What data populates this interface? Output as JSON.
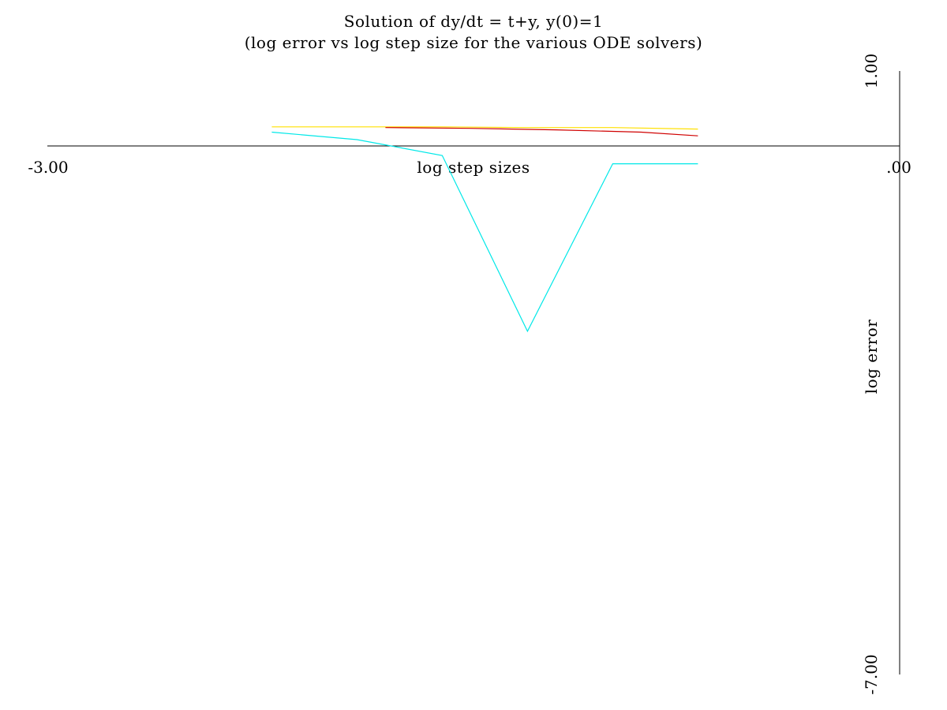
{
  "chart_data": {
    "type": "line",
    "title": "Solution of dy/dt = t+y, y(0)=1",
    "subtitle": "(log error vs log step size for the various ODE solvers)",
    "xlabel": "log step sizes",
    "ylabel": "log error",
    "xlim": [
      -3.0,
      0.0
    ],
    "ylim": [
      -7.0,
      1.0
    ],
    "x_tick_labels": [
      "-3.00",
      ".00"
    ],
    "y_tick_labels": [
      "1.00",
      "-7.00"
    ],
    "grid": false,
    "series": [
      {
        "color": "#ffe000",
        "x": [
          -2.21,
          -1.91,
          -1.61,
          -1.31,
          -1.01,
          -0.71
        ],
        "y": [
          0.26,
          0.26,
          0.26,
          0.25,
          0.25,
          0.23
        ]
      },
      {
        "color": "#d00000",
        "x": [
          -1.81,
          -1.51,
          -1.21,
          -0.91,
          -0.71
        ],
        "y": [
          0.25,
          0.24,
          0.22,
          0.19,
          0.14
        ]
      },
      {
        "color": "#00e8e8",
        "x": [
          -2.21,
          -1.91,
          -1.61,
          -1.31,
          -1.01,
          -0.71
        ],
        "y": [
          0.19,
          0.09,
          -0.12,
          -2.45,
          -0.23,
          -0.23
        ]
      }
    ]
  }
}
